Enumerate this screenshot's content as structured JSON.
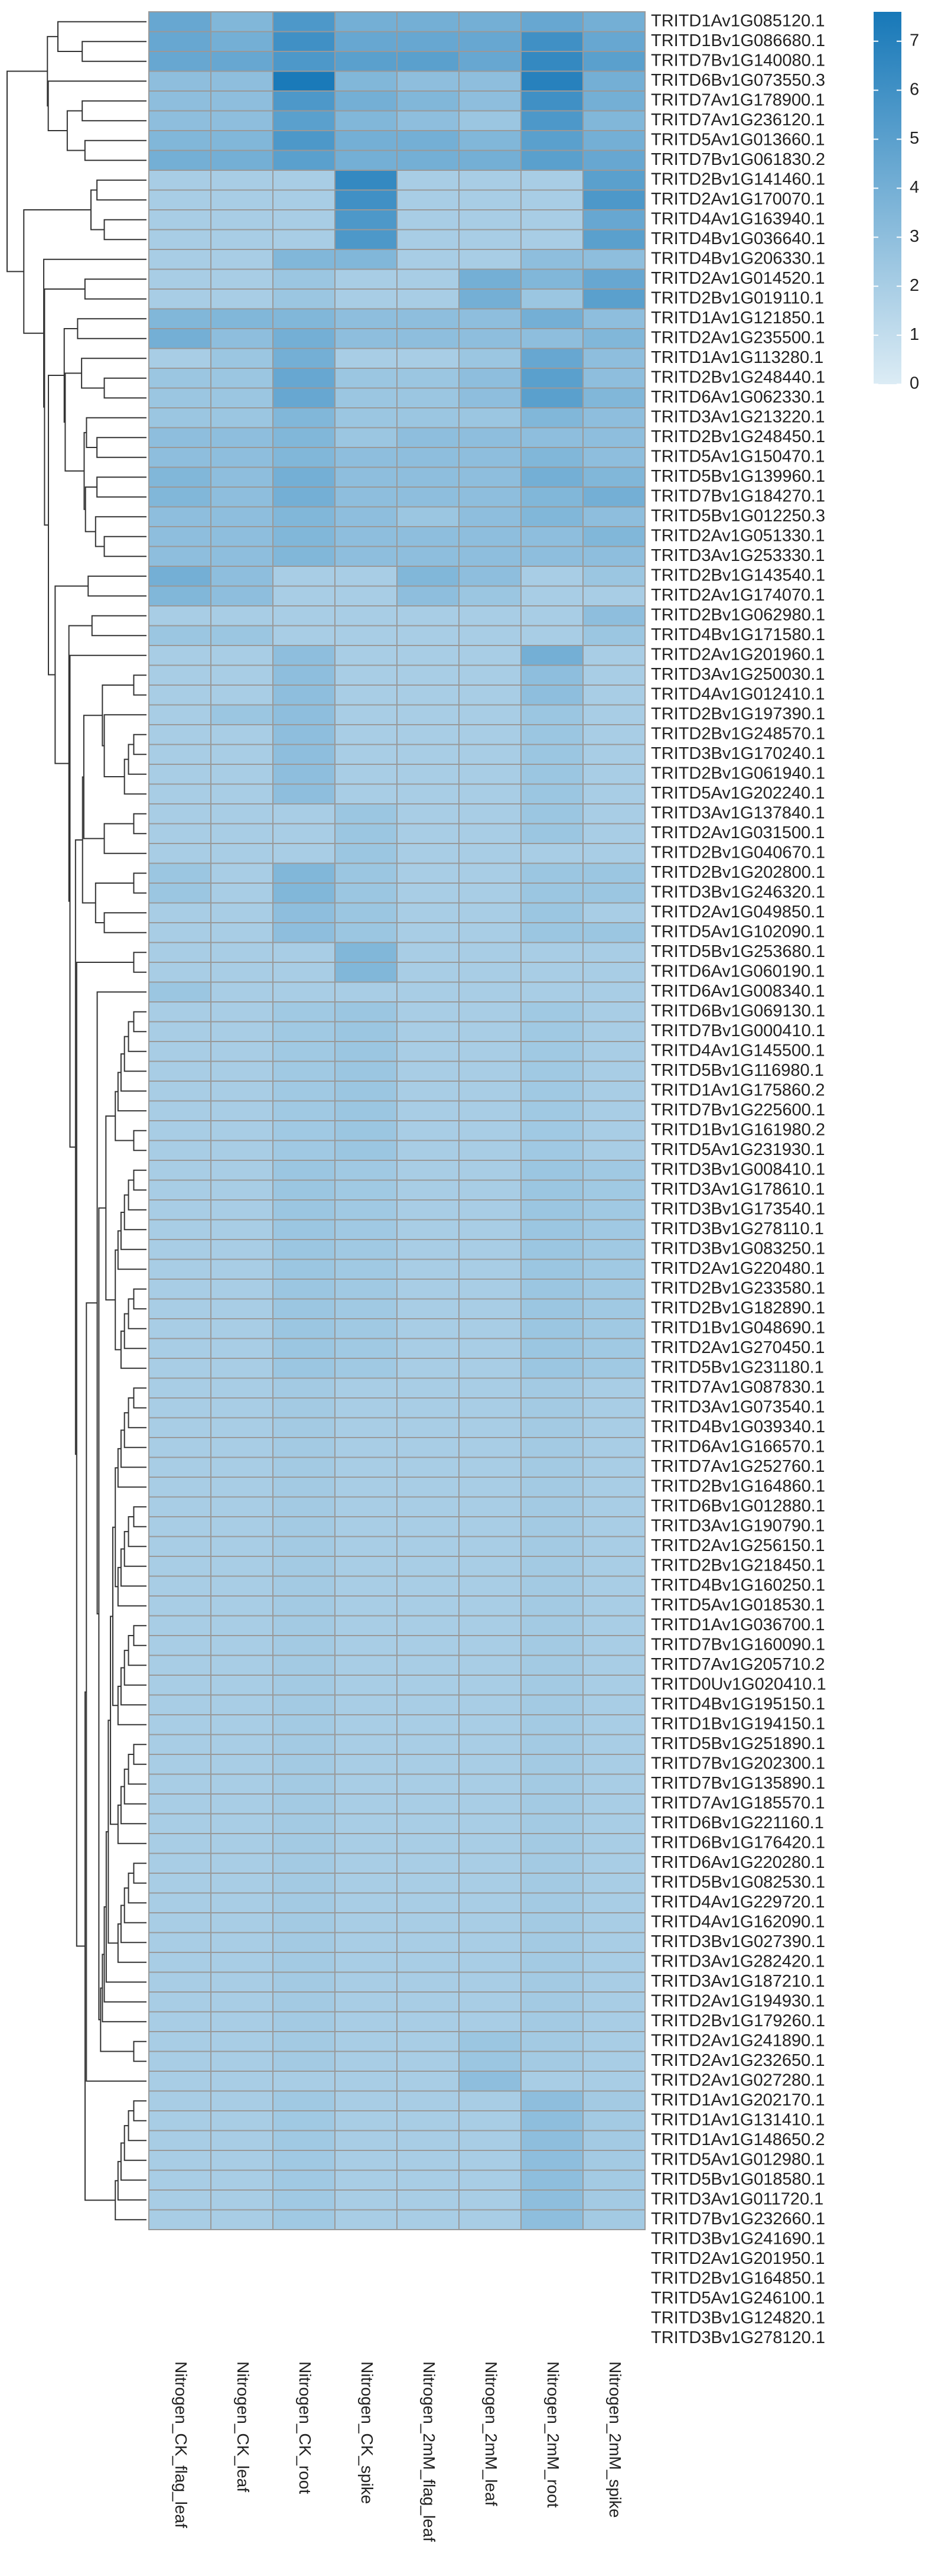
{
  "chart_data": {
    "type": "heatmap",
    "rows": [
      "TRITD1Av1G085120.1",
      "TRITD1Bv1G086680.1",
      "TRITD7Bv1G140080.1",
      "TRITD6Bv1G073550.3",
      "TRITD7Av1G178900.1",
      "TRITD7Av1G236120.1",
      "TRITD5Av1G013660.1",
      "TRITD7Bv1G061830.2",
      "TRITD2Bv1G141460.1",
      "TRITD2Av1G170070.1",
      "TRITD4Av1G163940.1",
      "TRITD4Bv1G036640.1",
      "TRITD4Bv1G206330.1",
      "TRITD2Av1G014520.1",
      "TRITD2Bv1G019110.1",
      "TRITD1Av1G121850.1",
      "TRITD2Av1G235500.1",
      "TRITD1Av1G113280.1",
      "TRITD2Bv1G248440.1",
      "TRITD6Av1G062330.1",
      "TRITD3Av1G213220.1",
      "TRITD2Bv1G248450.1",
      "TRITD5Av1G150470.1",
      "TRITD5Bv1G139960.1",
      "TRITD7Bv1G184270.1",
      "TRITD5Bv1G012250.3",
      "TRITD2Av1G051330.1",
      "TRITD3Av1G253330.1",
      "TRITD2Bv1G143540.1",
      "TRITD2Av1G174070.1",
      "TRITD2Bv1G062980.1",
      "TRITD4Bv1G171580.1",
      "TRITD2Av1G201960.1",
      "TRITD3Av1G250030.1",
      "TRITD4Av1G012410.1",
      "TRITD2Bv1G197390.1",
      "TRITD2Bv1G248570.1",
      "TRITD3Bv1G170240.1",
      "TRITD2Bv1G061940.1",
      "TRITD5Av1G202240.1",
      "TRITD3Av1G137840.1",
      "TRITD2Av1G031500.1",
      "TRITD2Bv1G040670.1",
      "TRITD2Bv1G202800.1",
      "TRITD3Bv1G246320.1",
      "TRITD2Av1G049850.1",
      "TRITD5Av1G102090.1",
      "TRITD5Bv1G253680.1",
      "TRITD6Av1G060190.1",
      "TRITD6Av1G008340.1",
      "TRITD6Bv1G069130.1",
      "TRITD7Bv1G000410.1",
      "TRITD4Av1G145500.1",
      "TRITD5Bv1G116980.1",
      "TRITD1Av1G175860.2",
      "TRITD7Bv1G225600.1",
      "TRITD1Bv1G161980.2",
      "TRITD5Av1G231930.1",
      "TRITD3Bv1G008410.1",
      "TRITD3Av1G178610.1",
      "TRITD3Bv1G173540.1",
      "TRITD3Bv1G278110.1",
      "TRITD3Bv1G083250.1",
      "TRITD2Av1G220480.1",
      "TRITD2Bv1G233580.1",
      "TRITD2Bv1G182890.1",
      "TRITD1Bv1G048690.1",
      "TRITD2Av1G270450.1",
      "TRITD5Bv1G231180.1",
      "TRITD7Av1G087830.1",
      "TRITD3Av1G073540.1",
      "TRITD4Bv1G039340.1",
      "TRITD6Av1G166570.1",
      "TRITD7Av1G252760.1",
      "TRITD2Bv1G164860.1",
      "TRITD6Bv1G012880.1",
      "TRITD3Av1G190790.1",
      "TRITD2Av1G256150.1",
      "TRITD2Bv1G218450.1",
      "TRITD4Bv1G160250.1",
      "TRITD5Av1G018530.1",
      "TRITD1Av1G036700.1",
      "TRITD7Bv1G160090.1",
      "TRITD7Av1G205710.2",
      "TRITD0Uv1G020410.1",
      "TRITD4Bv1G195150.1",
      "TRITD1Bv1G194150.1",
      "TRITD5Bv1G251890.1",
      "TRITD7Bv1G202300.1",
      "TRITD7Bv1G135890.1",
      "TRITD7Av1G185570.1",
      "TRITD6Bv1G221160.1",
      "TRITD6Bv1G176420.1",
      "TRITD6Av1G220280.1",
      "TRITD5Bv1G082530.1",
      "TRITD4Av1G229720.1",
      "TRITD4Av1G162090.1",
      "TRITD3Bv1G027390.1",
      "TRITD3Av1G282420.1",
      "TRITD3Av1G187210.1",
      "TRITD2Av1G194930.1",
      "TRITD2Bv1G179260.1",
      "TRITD2Av1G241890.1",
      "TRITD2Av1G232650.1",
      "TRITD2Av1G027280.1",
      "TRITD1Av1G202170.1",
      "TRITD1Av1G131410.1",
      "TRITD1Av1G148650.2",
      "TRITD5Av1G012980.1",
      "TRITD5Bv1G018580.1",
      "TRITD3Av1G011720.1",
      "TRITD7Bv1G232660.1",
      "TRITD3Bv1G241690.1",
      "TRITD2Av1G201950.1",
      "TRITD2Bv1G164850.1",
      "TRITD5Av1G246100.1",
      "TRITD3Bv1G124820.1",
      "TRITD3Bv1G278120.1"
    ],
    "columns": [
      "Nitrogen_CK_flag_leaf",
      "Nitrogen_CK_leaf",
      "Nitrogen_CK_root",
      "Nitrogen_CK_spike",
      "Nitrogen_2mM_flag_leaf",
      "Nitrogen_2mM_leaf",
      "Nitrogen_2mM_root",
      "Nitrogen_2mM_spike"
    ],
    "values": [
      [
        4.5,
        3.5,
        5.5,
        4,
        4,
        4,
        4.5,
        4
      ],
      [
        4.5,
        4,
        6,
        4.5,
        4.5,
        4.5,
        6,
        4.5
      ],
      [
        4.5,
        4.5,
        5.5,
        5,
        5,
        4.5,
        6.5,
        5
      ],
      [
        3,
        3,
        7.5,
        3.5,
        3,
        3,
        7,
        4
      ],
      [
        3,
        3,
        5.5,
        4,
        3.5,
        3,
        6,
        4
      ],
      [
        3,
        3,
        5,
        3.5,
        3,
        2.5,
        5.5,
        3.5
      ],
      [
        3.5,
        3.5,
        5.5,
        4,
        4,
        3.5,
        5,
        4
      ],
      [
        4,
        4,
        5,
        4,
        4,
        4,
        5,
        4.5
      ],
      [
        2,
        2,
        2,
        6.5,
        2,
        2,
        2,
        5
      ],
      [
        2,
        2,
        2,
        6,
        2,
        2,
        2,
        5.5
      ],
      [
        2,
        2,
        2,
        5.5,
        2,
        2,
        2,
        4.5
      ],
      [
        2,
        2,
        2,
        5.5,
        2,
        2,
        2,
        5
      ],
      [
        2,
        2,
        3.5,
        3.5,
        2,
        2,
        3,
        3
      ],
      [
        2,
        2,
        2.5,
        2,
        2,
        4,
        3.5,
        4.5
      ],
      [
        2,
        2,
        2.5,
        2,
        2,
        4,
        2.5,
        5
      ],
      [
        3.5,
        3.5,
        3.5,
        3,
        3,
        3,
        4,
        3
      ],
      [
        4,
        3,
        4,
        3,
        3,
        3,
        3,
        3.5
      ],
      [
        2,
        2.5,
        4,
        2,
        2,
        2.5,
        4.5,
        3
      ],
      [
        2.5,
        2.5,
        4.5,
        2.5,
        2.5,
        3,
        5,
        3
      ],
      [
        2.5,
        2.5,
        4.5,
        2.5,
        2.5,
        3,
        5,
        3.5
      ],
      [
        2.5,
        2.5,
        3.5,
        2.5,
        2.5,
        2.5,
        3.5,
        3
      ],
      [
        3,
        3,
        3.5,
        2.5,
        3,
        3,
        3,
        3
      ],
      [
        3,
        3,
        3.5,
        3,
        3,
        3,
        3.5,
        3
      ],
      [
        3.5,
        3,
        4,
        3,
        3,
        3,
        4,
        3.5
      ],
      [
        3.5,
        3,
        4,
        3,
        3,
        3,
        3.5,
        4
      ],
      [
        3,
        3,
        3.5,
        3,
        2.5,
        3,
        3.5,
        3
      ],
      [
        3,
        3,
        3.5,
        3,
        3,
        3,
        3,
        3.5
      ],
      [
        3,
        3,
        3.5,
        3,
        3,
        3,
        3,
        3
      ],
      [
        4,
        3,
        2,
        2,
        3.5,
        3,
        2,
        2.5
      ],
      [
        3.5,
        3,
        2,
        2,
        3,
        2.5,
        2,
        2
      ],
      [
        2,
        2,
        2,
        2,
        2,
        2,
        2,
        3
      ],
      [
        2.5,
        2.5,
        2,
        2,
        2,
        2,
        2,
        2.5
      ],
      [
        2,
        2,
        3,
        2,
        2,
        2,
        4,
        2
      ],
      [
        2,
        2,
        3,
        2,
        2,
        2,
        3,
        2
      ],
      [
        2,
        2,
        3,
        2,
        2,
        2,
        3,
        2
      ],
      [
        2,
        2.5,
        3,
        2,
        2,
        2,
        2.5,
        2
      ],
      [
        2,
        2,
        3,
        2,
        2,
        2,
        2.5,
        2
      ],
      [
        2,
        2,
        3,
        2,
        2,
        2,
        2.5,
        2
      ],
      [
        2,
        2,
        3,
        2,
        2,
        2,
        2.5,
        2
      ],
      [
        2,
        2,
        3,
        2,
        2,
        2,
        2.5,
        2
      ],
      [
        2,
        2,
        2,
        2.5,
        2,
        2,
        2.5,
        2
      ],
      [
        2,
        2,
        2,
        2.5,
        2,
        2,
        2.5,
        2
      ],
      [
        2,
        2,
        2,
        2.5,
        2,
        2,
        2,
        2
      ],
      [
        2.5,
        2,
        3.5,
        2.5,
        2,
        2,
        2.5,
        2.5
      ],
      [
        2.5,
        2,
        3.5,
        2.5,
        2,
        2,
        2.5,
        2.5
      ],
      [
        2,
        2,
        3,
        2.5,
        2,
        2,
        2.5,
        2
      ],
      [
        2,
        2,
        3,
        2.5,
        2,
        2,
        2.5,
        2.5
      ],
      [
        2,
        2,
        2,
        3.5,
        2,
        2,
        2,
        2
      ],
      [
        2,
        2,
        2,
        3.5,
        2,
        2,
        2,
        2
      ],
      [
        2.5,
        2,
        2,
        2,
        2,
        2,
        2,
        2
      ],
      [
        2,
        2,
        2.3,
        2.5,
        2,
        2,
        2.3,
        2
      ],
      [
        2,
        2,
        2.3,
        2.5,
        2,
        2,
        2.3,
        2
      ],
      [
        2,
        2,
        2.3,
        2.5,
        2,
        2,
        2.3,
        2
      ],
      [
        2,
        2,
        2.3,
        2.5,
        2,
        2,
        2.3,
        2
      ],
      [
        2,
        2,
        2.3,
        2.5,
        2,
        2,
        2.3,
        2
      ],
      [
        2,
        2,
        2.3,
        2.5,
        2,
        2,
        2.3,
        2
      ],
      [
        2,
        2,
        2.3,
        2.5,
        2,
        2,
        2.3,
        2
      ],
      [
        2,
        2,
        2.3,
        2.5,
        2,
        2,
        2.3,
        2
      ],
      [
        2,
        2,
        2.5,
        2.3,
        2,
        2,
        2.5,
        2.3
      ],
      [
        2,
        2,
        2.5,
        2.3,
        2,
        2,
        2.5,
        2.3
      ],
      [
        2,
        2,
        2.5,
        2.3,
        2,
        2,
        2.5,
        2.3
      ],
      [
        2,
        2,
        2.5,
        2.3,
        2,
        2,
        2.5,
        2.3
      ],
      [
        2,
        2,
        2.5,
        2.3,
        2,
        2,
        2.5,
        2.3
      ],
      [
        2,
        2,
        2.5,
        2.3,
        2,
        2,
        2.5,
        2.3
      ],
      [
        2,
        2,
        2.5,
        2.3,
        2,
        2,
        2.5,
        2.3
      ],
      [
        2,
        2,
        2.5,
        2.3,
        2,
        2,
        2.5,
        2.3
      ],
      [
        2,
        2,
        2.5,
        2.3,
        2,
        2,
        2.5,
        2.3
      ],
      [
        2,
        2,
        2.5,
        2.3,
        2,
        2,
        2.5,
        2.3
      ],
      [
        2,
        2,
        2.5,
        2.3,
        2,
        2,
        2.5,
        2.3
      ],
      [
        2,
        2,
        2.2,
        2,
        2,
        2,
        2.2,
        2
      ],
      [
        2,
        2,
        2.2,
        2,
        2,
        2,
        2.2,
        2
      ],
      [
        2,
        2,
        2.2,
        2,
        2,
        2,
        2.2,
        2
      ],
      [
        2,
        2,
        2.2,
        2,
        2,
        2,
        2.2,
        2
      ],
      [
        2,
        2,
        2.2,
        2,
        2,
        2,
        2.2,
        2
      ],
      [
        2,
        2,
        2.2,
        2,
        2,
        2,
        2.2,
        2
      ],
      [
        2,
        2,
        2.2,
        2,
        2,
        2,
        2.2,
        2
      ],
      [
        2,
        2,
        2.2,
        2,
        2,
        2,
        2.2,
        2
      ],
      [
        2,
        2,
        2.2,
        2,
        2,
        2,
        2.2,
        2
      ],
      [
        2,
        2,
        2.2,
        2,
        2,
        2,
        2.2,
        2
      ],
      [
        2,
        2,
        2.2,
        2,
        2,
        2,
        2.2,
        2
      ],
      [
        2,
        2,
        2.2,
        2,
        2,
        2,
        2.2,
        2
      ],
      [
        2,
        2,
        2.2,
        2,
        2,
        2,
        2.2,
        2
      ],
      [
        2,
        2,
        2.2,
        2,
        2,
        2,
        2.2,
        2
      ],
      [
        2,
        2,
        2.2,
        2,
        2,
        2,
        2.2,
        2
      ],
      [
        2,
        2,
        2.2,
        2,
        2,
        2,
        2.2,
        2
      ],
      [
        2,
        2,
        2.2,
        2,
        2,
        2,
        2.2,
        2
      ],
      [
        2,
        2,
        2.2,
        2,
        2,
        2,
        2.2,
        2
      ],
      [
        2,
        2,
        2.2,
        2,
        2,
        2,
        2.2,
        2
      ],
      [
        2,
        2,
        2.2,
        2,
        2,
        2,
        2.2,
        2
      ],
      [
        2,
        2,
        2.2,
        2,
        2,
        2,
        2.2,
        2
      ],
      [
        2,
        2,
        2.2,
        2,
        2,
        2,
        2.2,
        2
      ],
      [
        2,
        2,
        2.2,
        2,
        2,
        2,
        2.2,
        2
      ],
      [
        2,
        2,
        2.2,
        2,
        2,
        2,
        2.2,
        2
      ],
      [
        2,
        2,
        2.2,
        2,
        2,
        2,
        2.2,
        2
      ],
      [
        2,
        2,
        2.2,
        2,
        2,
        2,
        2.2,
        2
      ],
      [
        2,
        2,
        2.2,
        2,
        2,
        2,
        2.2,
        2
      ],
      [
        2,
        2,
        2.2,
        2,
        2,
        2,
        2.2,
        2
      ],
      [
        2,
        2,
        2.2,
        2,
        2,
        2,
        2.2,
        2
      ],
      [
        2,
        2,
        2.2,
        2,
        2,
        2,
        2.2,
        2
      ],
      [
        2,
        2,
        2.2,
        2,
        2,
        2,
        2.2,
        2
      ],
      [
        2,
        2,
        2.2,
        2,
        2,
        2,
        2.2,
        2
      ],
      [
        2,
        2,
        2.2,
        2,
        2,
        2,
        2.2,
        2
      ],
      [
        2,
        2,
        2.2,
        2,
        2,
        2.5,
        2.2,
        2
      ],
      [
        2,
        2,
        2.2,
        2,
        2,
        2.5,
        2.2,
        2
      ],
      [
        2,
        2,
        2,
        2,
        2,
        3,
        2,
        2
      ],
      [
        2,
        2,
        2.3,
        2,
        2,
        2,
        3,
        2.2
      ],
      [
        2,
        2,
        2.3,
        2,
        2,
        2,
        3,
        2.2
      ],
      [
        2,
        2,
        2.3,
        2,
        2,
        2,
        3,
        2.2
      ],
      [
        2,
        2,
        2.3,
        2,
        2,
        2,
        3,
        2.2
      ],
      [
        2,
        2,
        2.3,
        2,
        2,
        2,
        3,
        2.2
      ],
      [
        2,
        2,
        2.3,
        2,
        2,
        2,
        3,
        2.2
      ],
      [
        2,
        2,
        2.3,
        2,
        2,
        2,
        3,
        2.2
      ]
    ],
    "zlim": [
      0,
      7.6
    ],
    "zticks": [
      0,
      1,
      2,
      3,
      4,
      5,
      6,
      7
    ],
    "colors": [
      "#dcecf5",
      "#1778b8"
    ],
    "cell_border": "#999999",
    "dendrogram": true
  }
}
